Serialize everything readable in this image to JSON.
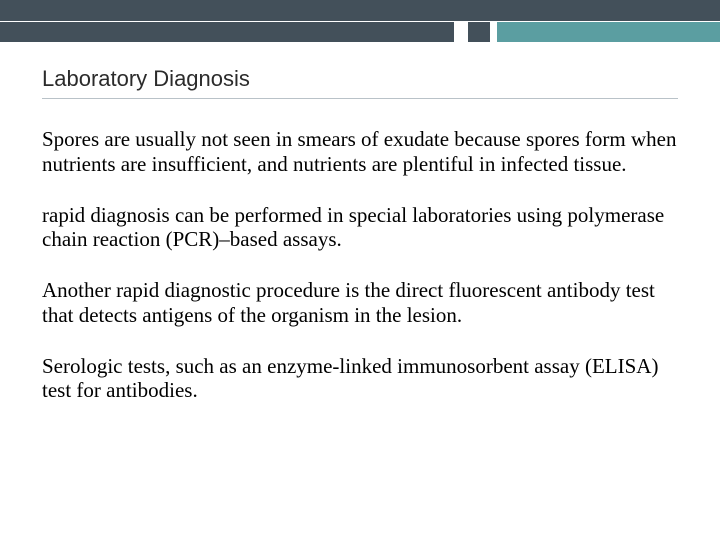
{
  "slide": {
    "title": "Laboratory Diagnosis",
    "paragraphs": [
      "Spores are usually not seen in smears of exudate because spores form when nutrients are insufficient, and nutrients are plentiful in infected tissue.",
      "rapid diagnosis can be performed in special laboratories using polymerase chain reaction (PCR)–based assays.",
      "Another rapid diagnostic procedure is the direct fluorescent antibody test that detects antigens of the organism in the lesion.",
      "Serologic tests, such as an enzyme-linked immunosorbent assay (ELISA) test for antibodies."
    ]
  },
  "style": {
    "topbar": {
      "row1_color": "#43505a",
      "row2_segments": [
        {
          "color": "#43505a",
          "width_pct": 63
        },
        {
          "color": "#ffffff",
          "width_pct": 2
        },
        {
          "color": "#43505a",
          "width_pct": 3
        },
        {
          "color": "#ffffff",
          "width_pct": 1
        },
        {
          "color": "#5b9ea1",
          "width_pct": 31
        }
      ]
    },
    "title_font_family": "Arial",
    "title_font_size_pt": 17,
    "title_underline_color": "#b9c2c8",
    "body_font_family": "Times New Roman",
    "body_font_size_pt": 16,
    "body_color": "#000000",
    "background_color": "#ffffff"
  }
}
